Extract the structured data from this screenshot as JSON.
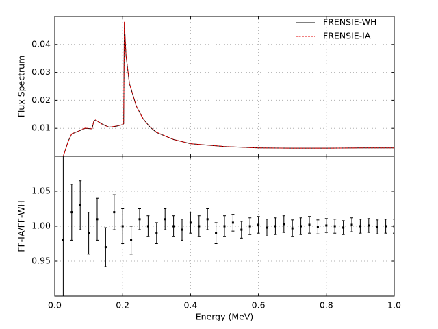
{
  "chart_data": [
    {
      "type": "line",
      "ylabel": "Flux Spectrum",
      "x": [
        0.025,
        0.04,
        0.05,
        0.07,
        0.09,
        0.11,
        0.115,
        0.12,
        0.14,
        0.16,
        0.18,
        0.2,
        0.203,
        0.205,
        0.21,
        0.22,
        0.24,
        0.26,
        0.28,
        0.3,
        0.35,
        0.4,
        0.5,
        0.6,
        0.7,
        0.8,
        0.9,
        0.999,
        1.0
      ],
      "series": [
        {
          "name": "FRENSIE-WH",
          "color": "#000000",
          "linestyle": "solid",
          "values": [
            0,
            0.0055,
            0.008,
            0.009,
            0.01,
            0.0098,
            0.0125,
            0.013,
            0.0115,
            0.0104,
            0.0107,
            0.0113,
            0.0116,
            0.048,
            0.036,
            0.026,
            0.018,
            0.0135,
            0.0105,
            0.0085,
            0.006,
            0.0045,
            0.0035,
            0.003,
            0.0029,
            0.0029,
            0.003,
            0.003,
            0.05
          ]
        },
        {
          "name": "FRENSIE-IA",
          "color": "#e00000",
          "linestyle": "dashed",
          "values": [
            0,
            0.0054,
            0.0081,
            0.009,
            0.0101,
            0.0098,
            0.0126,
            0.013,
            0.0114,
            0.0104,
            0.0108,
            0.0113,
            0.0117,
            0.0481,
            0.0361,
            0.026,
            0.018,
            0.0134,
            0.0105,
            0.0086,
            0.006,
            0.0045,
            0.0035,
            0.003,
            0.0029,
            0.0029,
            0.003,
            0.003,
            0.05
          ]
        }
      ],
      "xlim": [
        0,
        1
      ],
      "xticks": [
        0,
        0.2,
        0.4,
        0.6,
        0.8,
        1
      ],
      "ylim": [
        0,
        0.05
      ],
      "yticks": [
        0.01,
        0.02,
        0.03,
        0.04
      ],
      "grid": true,
      "legend": "upper right"
    },
    {
      "type": "errorbar",
      "xlabel": "Energy (MeV)",
      "ylabel": "FF-IA/FF-WH",
      "x": [
        0.025,
        0.05,
        0.075,
        0.1,
        0.125,
        0.15,
        0.175,
        0.2,
        0.225,
        0.25,
        0.275,
        0.3,
        0.325,
        0.35,
        0.375,
        0.4,
        0.425,
        0.45,
        0.475,
        0.5,
        0.525,
        0.55,
        0.575,
        0.6,
        0.625,
        0.65,
        0.675,
        0.7,
        0.725,
        0.75,
        0.775,
        0.8,
        0.825,
        0.85,
        0.875,
        0.9,
        0.925,
        0.95,
        0.975,
        1.0
      ],
      "series": [
        {
          "color": "#000000",
          "values": [
            0.98,
            1.02,
            1.03,
            0.99,
            1.01,
            0.97,
            1.02,
            1.0,
            0.98,
            1.01,
            1.0,
            0.99,
            1.01,
            1.0,
            0.995,
            1.005,
            1.0,
            1.01,
            0.99,
            1.0,
            1.005,
            0.995,
            1.0,
            1.002,
            0.998,
            1.0,
            1.003,
            0.997,
            1.0,
            1.002,
            0.999,
            1.001,
            1.0,
            0.998,
            1.002,
            1.0,
            1.001,
            0.999,
            1.0,
            1.0
          ],
          "errors": [
            0.15,
            0.04,
            0.035,
            0.03,
            0.03,
            0.028,
            0.025,
            0.025,
            0.02,
            0.015,
            0.015,
            0.015,
            0.015,
            0.015,
            0.015,
            0.015,
            0.015,
            0.015,
            0.015,
            0.015,
            0.012,
            0.012,
            0.012,
            0.012,
            0.012,
            0.012,
            0.012,
            0.012,
            0.012,
            0.012,
            0.01,
            0.01,
            0.01,
            0.01,
            0.01,
            0.01,
            0.01,
            0.01,
            0.01,
            0.01
          ]
        }
      ],
      "xlim": [
        0,
        1
      ],
      "xticks": [
        {
          "value": 0,
          "label": "0.0"
        },
        0.2,
        0.4,
        0.6,
        0.8,
        {
          "value": 1,
          "label": "1.0"
        }
      ],
      "ylim": [
        0.9,
        1.1
      ],
      "yticks": [
        0.95,
        {
          "value": 1,
          "label": "1.00"
        },
        1.05
      ],
      "grid": true
    }
  ]
}
